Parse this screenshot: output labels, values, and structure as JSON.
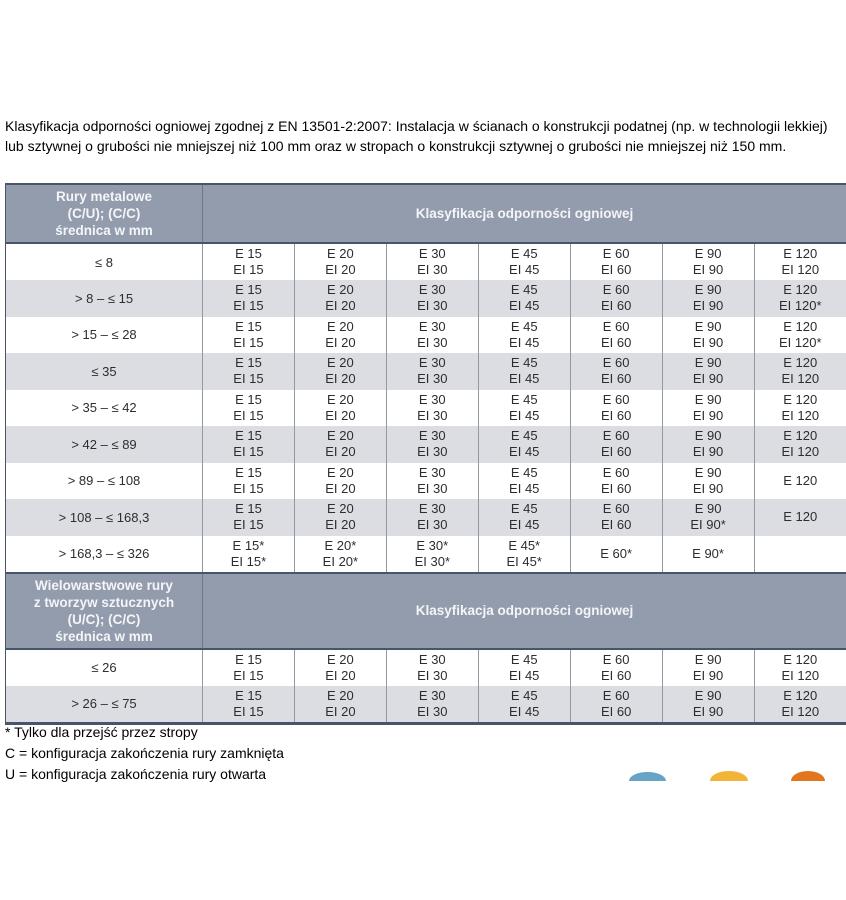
{
  "page": {
    "intro": "Klasyfikacja odporności ogniowej zgodnej z EN 13501-2:2007: Instalacja w ścianach o konstrukcji podatnej (np. w technologii lekkiej) lub sztywnej o grubości nie mniejszej niż 100 mm oraz w stropach o konstrukcji sztywnej o grubości nie mniejszej niż 150 mm."
  },
  "table": {
    "span_header": "Klasyfikacja odporności ogniowej",
    "sections": [
      {
        "corner_lines": [
          "Rury metalowe",
          "(C/U); (C/C)",
          "średnica w mm"
        ],
        "rows": [
          {
            "label": "≤ 8",
            "cells": [
              [
                "E 15",
                "EI 15"
              ],
              [
                "E 20",
                "EI 20"
              ],
              [
                "E 30",
                "EI 30"
              ],
              [
                "E 45",
                "EI 45"
              ],
              [
                "E 60",
                "EI 60"
              ],
              [
                "E 90",
                "EI 90"
              ],
              [
                "E 120",
                "EI 120"
              ]
            ]
          },
          {
            "label": "> 8 – ≤ 15",
            "cells": [
              [
                "E 15",
                "EI 15"
              ],
              [
                "E 20",
                "EI 20"
              ],
              [
                "E 30",
                "EI 30"
              ],
              [
                "E 45",
                "EI 45"
              ],
              [
                "E 60",
                "EI 60"
              ],
              [
                "E 90",
                "EI 90"
              ],
              [
                "E 120",
                "EI 120*"
              ]
            ]
          },
          {
            "label": "> 15 – ≤ 28",
            "cells": [
              [
                "E 15",
                "EI 15"
              ],
              [
                "E 20",
                "EI 20"
              ],
              [
                "E 30",
                "EI 30"
              ],
              [
                "E 45",
                "EI 45"
              ],
              [
                "E 60",
                "EI 60"
              ],
              [
                "E 90",
                "EI 90"
              ],
              [
                "E 120",
                "EI 120*"
              ]
            ]
          },
          {
            "label": "≤ 35",
            "cells": [
              [
                "E 15",
                "EI 15"
              ],
              [
                "E 20",
                "EI 20"
              ],
              [
                "E 30",
                "EI 30"
              ],
              [
                "E 45",
                "EI 45"
              ],
              [
                "E 60",
                "EI 60"
              ],
              [
                "E 90",
                "EI 90"
              ],
              [
                "E 120",
                "EI 120"
              ]
            ]
          },
          {
            "label": "> 35 – ≤ 42",
            "cells": [
              [
                "E 15",
                "EI 15"
              ],
              [
                "E 20",
                "EI 20"
              ],
              [
                "E 30",
                "EI 30"
              ],
              [
                "E 45",
                "EI 45"
              ],
              [
                "E 60",
                "EI 60"
              ],
              [
                "E 90",
                "EI 90"
              ],
              [
                "E 120",
                "EI 120"
              ]
            ]
          },
          {
            "label": "> 42 – ≤ 89",
            "cells": [
              [
                "E 15",
                "EI 15"
              ],
              [
                "E 20",
                "EI 20"
              ],
              [
                "E 30",
                "EI 30"
              ],
              [
                "E 45",
                "EI 45"
              ],
              [
                "E 60",
                "EI 60"
              ],
              [
                "E 90",
                "EI 90"
              ],
              [
                "E 120",
                "EI 120"
              ]
            ]
          },
          {
            "label": "> 89 – ≤ 108",
            "cells": [
              [
                "E 15",
                "EI 15"
              ],
              [
                "E 20",
                "EI 20"
              ],
              [
                "E 30",
                "EI 30"
              ],
              [
                "E 45",
                "EI 45"
              ],
              [
                "E 60",
                "EI 60"
              ],
              [
                "E 90",
                "EI 90"
              ],
              [
                "E 120",
                ""
              ]
            ]
          },
          {
            "label": "> 108 – ≤ 168,3",
            "cells": [
              [
                "E 15",
                "EI 15"
              ],
              [
                "E 20",
                "EI 20"
              ],
              [
                "E 30",
                "EI 30"
              ],
              [
                "E 45",
                "EI 45"
              ],
              [
                "E 60",
                "EI 60"
              ],
              [
                "E 90",
                "EI 90*"
              ],
              [
                "E 120",
                ""
              ]
            ]
          },
          {
            "label": "> 168,3 – ≤ 326",
            "cells": [
              [
                "E 15*",
                "EI 15*"
              ],
              [
                "E 20*",
                "EI 20*"
              ],
              [
                "E 30*",
                "EI 30*"
              ],
              [
                "E 45*",
                "EI 45*"
              ],
              [
                "E 60*",
                ""
              ],
              [
                "E 90*",
                ""
              ],
              [
                "",
                ""
              ]
            ]
          }
        ]
      },
      {
        "corner_lines": [
          "Wielowarstwowe rury",
          "z tworzyw sztucznych",
          "(U/C); (C/C)",
          "średnica w mm"
        ],
        "rows": [
          {
            "label": "≤ 26",
            "cells": [
              [
                "E 15",
                "EI 15"
              ],
              [
                "E 20",
                "EI 20"
              ],
              [
                "E 30",
                "EI 30"
              ],
              [
                "E 45",
                "EI 45"
              ],
              [
                "E 60",
                "EI 60"
              ],
              [
                "E 90",
                "EI 90"
              ],
              [
                "E 120",
                "EI 120"
              ]
            ]
          },
          {
            "label": "> 26 – ≤ 75",
            "cells": [
              [
                "E 15",
                "EI 15"
              ],
              [
                "E 20",
                "EI 20"
              ],
              [
                "E 30",
                "EI 30"
              ],
              [
                "E 45",
                "EI 45"
              ],
              [
                "E 60",
                "EI 60"
              ],
              [
                "E 90",
                "EI 90"
              ],
              [
                "E 120",
                "EI 120"
              ]
            ]
          }
        ]
      }
    ]
  },
  "footnotes": [
    "* Tylko dla przejść przez stropy",
    "C = konfiguracja zakończenia rury zamknięta",
    "U = konfiguracja zakończenia rury otwarta"
  ],
  "decor": {
    "dots": [
      {
        "name": "blue-circle",
        "color": "#66A3C4"
      },
      {
        "name": "yellow-circle",
        "color": "#F2B339"
      },
      {
        "name": "orange-circle",
        "color": "#E2761F"
      }
    ]
  },
  "colors": {
    "header_bg": "#939CAD",
    "header_text": "#F4F5F8",
    "dark_border": "#485469",
    "zebra_row": "#DCDDE2",
    "cell_text": "#2D2D2D"
  }
}
